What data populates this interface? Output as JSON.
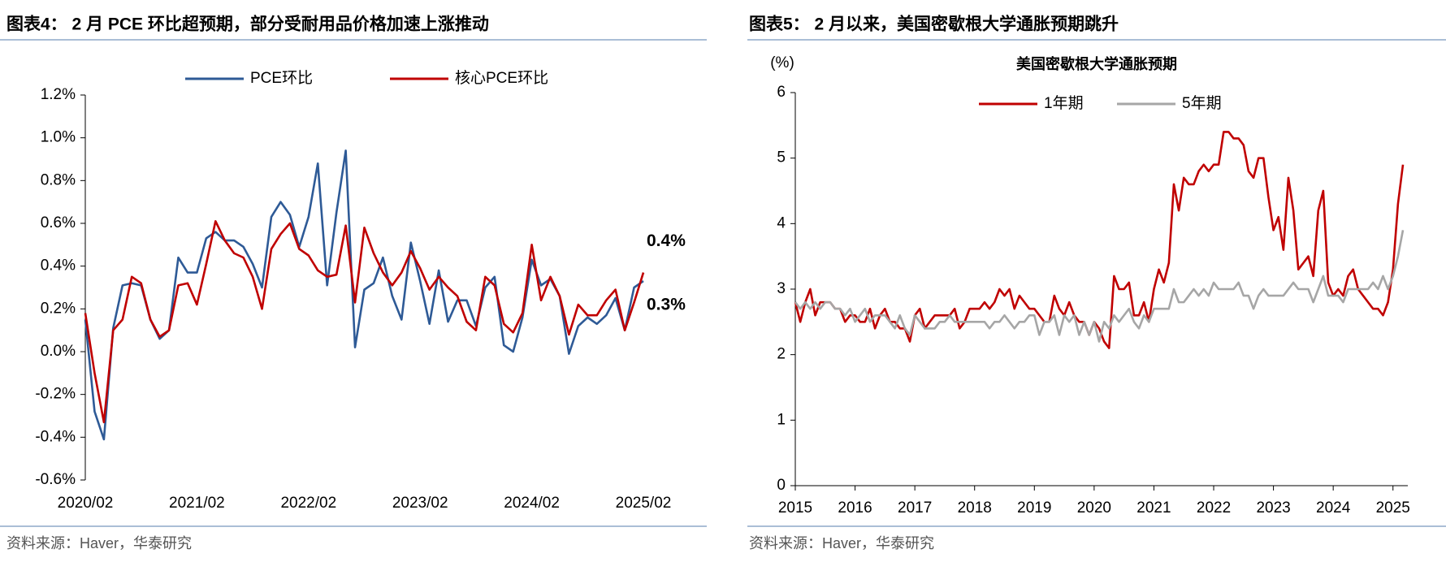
{
  "chart_data": [
    {
      "type": "line",
      "title": "图表4：  2 月 PCE 环比超预期，部分受耐用品价格加速上涨推动",
      "source": "资料来源：Haver，华泰研究",
      "categories": [
        "2020/02",
        null,
        null,
        null,
        null,
        null,
        null,
        null,
        null,
        null,
        null,
        null,
        "2021/02",
        null,
        null,
        null,
        null,
        null,
        null,
        null,
        null,
        null,
        null,
        null,
        "2022/02",
        null,
        null,
        null,
        null,
        null,
        null,
        null,
        null,
        null,
        null,
        null,
        "2023/02",
        null,
        null,
        null,
        null,
        null,
        null,
        null,
        null,
        null,
        null,
        null,
        "2024/02",
        null,
        null,
        null,
        null,
        null,
        null,
        null,
        null,
        null,
        null,
        null,
        "2025/02"
      ],
      "series": [
        {
          "name": "PCE环比",
          "color": "#2e5a96",
          "end_label": "0.3%",
          "values": [
            0.15,
            -0.28,
            -0.41,
            0.11,
            0.31,
            0.32,
            0.31,
            0.15,
            0.06,
            0.1,
            0.44,
            0.37,
            0.37,
            0.53,
            0.56,
            0.52,
            0.52,
            0.49,
            0.41,
            0.3,
            0.63,
            0.7,
            0.64,
            0.49,
            0.63,
            0.88,
            0.31,
            0.65,
            0.94,
            0.02,
            0.29,
            0.32,
            0.44,
            0.26,
            0.15,
            0.51,
            0.33,
            0.13,
            0.38,
            0.14,
            0.24,
            0.24,
            0.12,
            0.3,
            0.35,
            0.03,
            0.0,
            0.16,
            0.43,
            0.31,
            0.34,
            0.26,
            -0.01,
            0.12,
            0.16,
            0.13,
            0.17,
            0.25,
            0.1,
            0.3,
            0.33
          ]
        },
        {
          "name": "核心PCE环比",
          "color": "#c00000",
          "end_label": "0.4%",
          "values": [
            0.18,
            -0.1,
            -0.33,
            0.1,
            0.15,
            0.35,
            0.32,
            0.15,
            0.07,
            0.1,
            0.31,
            0.32,
            0.22,
            0.41,
            0.61,
            0.52,
            0.46,
            0.44,
            0.35,
            0.2,
            0.48,
            0.55,
            0.6,
            0.48,
            0.45,
            0.38,
            0.35,
            0.36,
            0.59,
            0.23,
            0.58,
            0.46,
            0.37,
            0.31,
            0.37,
            0.47,
            0.39,
            0.29,
            0.35,
            0.3,
            0.26,
            0.14,
            0.1,
            0.35,
            0.31,
            0.13,
            0.09,
            0.18,
            0.5,
            0.24,
            0.35,
            0.26,
            0.08,
            0.22,
            0.17,
            0.17,
            0.24,
            0.29,
            0.1,
            0.23,
            0.37
          ]
        }
      ],
      "ylim": [
        -0.6,
        1.2
      ],
      "yticks": [
        {
          "value": -0.6,
          "label": "-0.6%"
        },
        {
          "value": -0.4,
          "label": "-0.4%"
        },
        {
          "value": -0.2,
          "label": "-0.2%"
        },
        {
          "value": 0,
          "label": "0.0%"
        },
        {
          "value": 0.2,
          "label": "0.2%"
        },
        {
          "value": 0.4,
          "label": "0.4%"
        },
        {
          "value": 0.6,
          "label": "0.6%"
        },
        {
          "value": 0.8,
          "label": "0.8%"
        },
        {
          "value": 1.0,
          "label": "1.0%"
        },
        {
          "value": 1.2,
          "label": "1.2%"
        }
      ],
      "grid": false
    },
    {
      "type": "line",
      "title": "图表5：  2 月以来，美国密歇根大学通胀预期跳升",
      "subtitle": "美国密歇根大学通胀预期",
      "y_label": "(%)",
      "source": "资料来源：Haver，华泰研究",
      "categories": [
        "2015",
        null,
        null,
        null,
        null,
        null,
        null,
        null,
        null,
        null,
        null,
        null,
        "2016",
        null,
        null,
        null,
        null,
        null,
        null,
        null,
        null,
        null,
        null,
        null,
        "2017",
        null,
        null,
        null,
        null,
        null,
        null,
        null,
        null,
        null,
        null,
        null,
        "2018",
        null,
        null,
        null,
        null,
        null,
        null,
        null,
        null,
        null,
        null,
        null,
        "2019",
        null,
        null,
        null,
        null,
        null,
        null,
        null,
        null,
        null,
        null,
        null,
        "2020",
        null,
        null,
        null,
        null,
        null,
        null,
        null,
        null,
        null,
        null,
        null,
        "2021",
        null,
        null,
        null,
        null,
        null,
        null,
        null,
        null,
        null,
        null,
        null,
        "2022",
        null,
        null,
        null,
        null,
        null,
        null,
        null,
        null,
        null,
        null,
        null,
        "2023",
        null,
        null,
        null,
        null,
        null,
        null,
        null,
        null,
        null,
        null,
        null,
        "2024",
        null,
        null,
        null,
        null,
        null,
        null,
        null,
        null,
        null,
        null,
        null,
        "2025",
        null,
        null
      ],
      "series": [
        {
          "name": "1年期",
          "color": "#c00000",
          "values": [
            2.8,
            2.5,
            2.8,
            3.0,
            2.6,
            2.8,
            2.8,
            2.8,
            2.7,
            2.7,
            2.5,
            2.6,
            2.6,
            2.5,
            2.5,
            2.7,
            2.4,
            2.6,
            2.7,
            2.5,
            2.5,
            2.4,
            2.4,
            2.2,
            2.6,
            2.7,
            2.4,
            2.5,
            2.6,
            2.6,
            2.6,
            2.6,
            2.7,
            2.4,
            2.5,
            2.7,
            2.7,
            2.7,
            2.8,
            2.7,
            2.8,
            3.0,
            2.9,
            3.0,
            2.7,
            2.9,
            2.8,
            2.7,
            2.7,
            2.6,
            2.5,
            2.5,
            2.9,
            2.7,
            2.6,
            2.8,
            2.6,
            2.5,
            2.5,
            2.3,
            2.5,
            2.4,
            2.2,
            2.1,
            3.2,
            3.0,
            3.0,
            3.1,
            2.6,
            2.6,
            2.8,
            2.5,
            3.0,
            3.3,
            3.1,
            3.4,
            4.6,
            4.2,
            4.7,
            4.6,
            4.6,
            4.8,
            4.9,
            4.8,
            4.9,
            4.9,
            5.4,
            5.4,
            5.3,
            5.3,
            5.2,
            4.8,
            4.7,
            5.0,
            5.0,
            4.4,
            3.9,
            4.1,
            3.6,
            4.7,
            4.2,
            3.3,
            3.4,
            3.5,
            3.2,
            4.2,
            4.5,
            3.1,
            2.9,
            3.0,
            2.9,
            3.2,
            3.3,
            3.0,
            2.9,
            2.8,
            2.7,
            2.7,
            2.6,
            2.8,
            3.3,
            4.3,
            4.9
          ]
        },
        {
          "name": "5年期",
          "color": "#a6a6a6",
          "values": [
            2.8,
            2.7,
            2.8,
            2.7,
            2.8,
            2.7,
            2.8,
            2.8,
            2.7,
            2.7,
            2.6,
            2.7,
            2.5,
            2.6,
            2.7,
            2.5,
            2.6,
            2.6,
            2.6,
            2.5,
            2.4,
            2.6,
            2.4,
            2.3,
            2.6,
            2.5,
            2.4,
            2.4,
            2.4,
            2.5,
            2.5,
            2.6,
            2.5,
            2.5,
            2.5,
            2.5,
            2.5,
            2.5,
            2.5,
            2.4,
            2.5,
            2.5,
            2.6,
            2.5,
            2.4,
            2.5,
            2.5,
            2.6,
            2.6,
            2.3,
            2.5,
            2.5,
            2.6,
            2.3,
            2.6,
            2.5,
            2.6,
            2.3,
            2.5,
            2.3,
            2.5,
            2.2,
            2.5,
            2.4,
            2.6,
            2.5,
            2.6,
            2.7,
            2.5,
            2.4,
            2.6,
            2.5,
            2.7,
            2.7,
            2.7,
            2.7,
            3.0,
            2.8,
            2.8,
            2.9,
            3.0,
            2.9,
            3.0,
            2.9,
            3.1,
            3.0,
            3.0,
            3.0,
            3.0,
            3.1,
            2.9,
            2.9,
            2.7,
            2.9,
            3.0,
            2.9,
            2.9,
            2.9,
            2.9,
            3.0,
            3.1,
            3.0,
            3.0,
            3.0,
            2.8,
            3.0,
            3.2,
            2.9,
            2.9,
            2.9,
            2.8,
            3.0,
            3.0,
            3.0,
            3.0,
            3.0,
            3.1,
            3.0,
            3.2,
            3.0,
            3.2,
            3.5,
            3.9
          ]
        }
      ],
      "ylim": [
        0,
        6
      ],
      "yticks": [
        0,
        1,
        2,
        3,
        4,
        5,
        6
      ],
      "grid": false
    }
  ]
}
